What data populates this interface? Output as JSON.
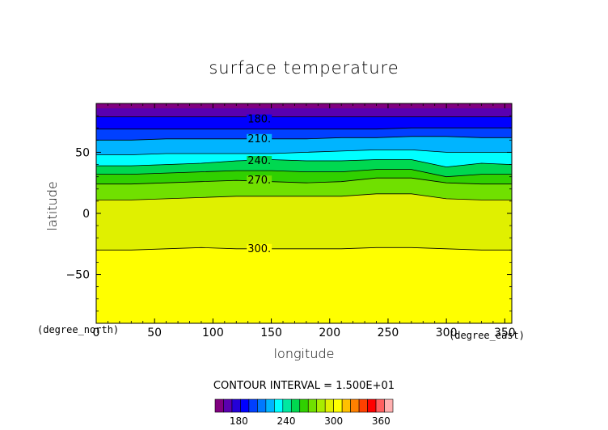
{
  "chart_data": {
    "type": "heatmap",
    "title": "surface temperature",
    "xlabel": "longitude",
    "ylabel": "latitude",
    "x_unit": "(degree_east)",
    "y_unit": "(degree_north)",
    "xlim": [
      0,
      356
    ],
    "ylim": [
      -90,
      90
    ],
    "x_ticks": [
      0,
      50,
      100,
      150,
      200,
      250,
      300,
      350
    ],
    "y_ticks": [
      -50,
      0,
      50
    ],
    "x_tick_labels": [
      "0",
      "50",
      "100",
      "150",
      "200",
      "250",
      "300",
      "350"
    ],
    "y_tick_labels": [
      "−50",
      "0",
      "50"
    ],
    "contour_interval_text": "CONTOUR INTERVAL = 1.500E+01",
    "contour_interval": 15,
    "contour_labels": [
      {
        "text": "180.",
        "value": 180,
        "lon": 130,
        "lat": 77
      },
      {
        "text": "210.",
        "value": 210,
        "lon": 130,
        "lat": 61
      },
      {
        "text": "240.",
        "value": 240,
        "lon": 130,
        "lat": 43
      },
      {
        "text": "270.",
        "value": 270,
        "lon": 130,
        "lat": 27
      },
      {
        "text": "300.",
        "value": 300,
        "lon": 130,
        "lat": -29
      }
    ],
    "levels": [
      {
        "value": 180,
        "lats": [
          79,
          79,
          79,
          79,
          79,
          79,
          79,
          79,
          79,
          79,
          79,
          79,
          79
        ]
      },
      {
        "value": 195,
        "lats": [
          69,
          69,
          69,
          69,
          69,
          69,
          69,
          69,
          69,
          70,
          70,
          70,
          70
        ]
      },
      {
        "value": 210,
        "lats": [
          60,
          60,
          61,
          61,
          61,
          61,
          61,
          62,
          62,
          63,
          63,
          62,
          62
        ]
      },
      {
        "value": 225,
        "lats": [
          48,
          48,
          49,
          49,
          49,
          49,
          50,
          51,
          52,
          52,
          50,
          50,
          50
        ]
      },
      {
        "value": 240,
        "lats": [
          39,
          39,
          40,
          41,
          43,
          44,
          43,
          43,
          44,
          44,
          38,
          41,
          40
        ]
      },
      {
        "value": 255,
        "lats": [
          32,
          32,
          33,
          34,
          35,
          35,
          34,
          34,
          36,
          36,
          30,
          32,
          32
        ]
      },
      {
        "value": 270,
        "lats": [
          24,
          24,
          25,
          26,
          27,
          26,
          25,
          26,
          29,
          29,
          25,
          24,
          24
        ]
      },
      {
        "value": 285,
        "lats": [
          11,
          11,
          12,
          13,
          14,
          14,
          14,
          14,
          16,
          16,
          12,
          11,
          11
        ]
      },
      {
        "value": 300,
        "lats": [
          -30,
          -30,
          -29,
          -28,
          -29,
          -29,
          -29,
          -29,
          -28,
          -28,
          -29,
          -30,
          -30
        ]
      }
    ],
    "level_lons": [
      0,
      30,
      60,
      90,
      120,
      150,
      180,
      210,
      240,
      270,
      300,
      330,
      356
    ],
    "colorbar": {
      "labels": [
        "180",
        "240",
        "300",
        "360"
      ],
      "label_values": [
        180,
        240,
        300,
        360
      ],
      "min": 150,
      "max": 375,
      "colors": [
        "#800080",
        "#5a00b0",
        "#2400d8",
        "#0000ff",
        "#0040ff",
        "#0078ff",
        "#00b4ff",
        "#00ffff",
        "#00e8a0",
        "#00d850",
        "#30d000",
        "#70e000",
        "#a8ec00",
        "#e0f000",
        "#ffff00",
        "#ffc000",
        "#ff8000",
        "#ff4000",
        "#ff0000",
        "#ff6060",
        "#ffb0b0"
      ]
    }
  }
}
